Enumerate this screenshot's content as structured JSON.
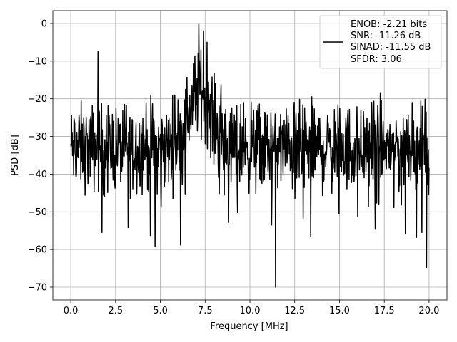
{
  "chart_data": {
    "type": "line",
    "title": "",
    "xlabel": "Frequency [MHz]",
    "ylabel": "PSD [dB]",
    "xlim": [
      -1,
      21
    ],
    "ylim": [
      -73.4,
      3.4
    ],
    "xticks": [
      0.0,
      2.5,
      5.0,
      7.5,
      10.0,
      12.5,
      15.0,
      17.5,
      20.0
    ],
    "xtick_labels": [
      "0.0",
      "2.5",
      "5.0",
      "7.5",
      "10.0",
      "12.5",
      "15.0",
      "17.5",
      "20.0"
    ],
    "yticks": [
      0,
      -10,
      -20,
      -30,
      -40,
      -50,
      -60,
      -70
    ],
    "ytick_labels": [
      "0",
      "−10",
      "−20",
      "−30",
      "−40",
      "−50",
      "−60",
      "−70"
    ],
    "grid": true,
    "legend_position": "top-right",
    "legend_lines": [
      "ENOB: -2.21 bits",
      "SNR: -11.26 dB",
      "SINAD: -11.55 dB",
      "SFDR: 3.06"
    ],
    "series": [
      {
        "color": "#000000",
        "note": "noisy power spectral density, ~1000 samples from 0 to 20 MHz",
        "x_range": [
          0.0,
          20.0
        ],
        "noise_floor_db": -33,
        "noise_spread_db": 8,
        "features": [
          {
            "x": 7.15,
            "y": 0.0,
            "kind": "main peak"
          },
          {
            "x": 7.4,
            "y": -2.0
          },
          {
            "x": 7.6,
            "y": -5.0
          },
          {
            "x": 1.52,
            "y": -7.5,
            "kind": "spur"
          },
          {
            "x": 11.43,
            "y": -70.0,
            "kind": "deep notch"
          },
          {
            "x": 19.85,
            "y": -64.8,
            "kind": "deep notch"
          },
          {
            "x": 4.7,
            "y": -59.3,
            "kind": "deep notch"
          },
          {
            "x": 4.45,
            "y": -56.3,
            "kind": "deep notch"
          },
          {
            "x": 1.75,
            "y": -55.5
          },
          {
            "x": 3.2,
            "y": -54.2
          },
          {
            "x": 19.6,
            "y": -55.5
          },
          {
            "x": 19.3,
            "y": -56.8
          },
          {
            "x": 13.4,
            "y": -56.6
          },
          {
            "x": 17.0,
            "y": -54.6
          },
          {
            "x": 3.0,
            "y": -21.5
          },
          {
            "x": 19.05,
            "y": -21.0
          },
          {
            "x": 9.65,
            "y": -21.0
          },
          {
            "x": 5.8,
            "y": -19.0
          },
          {
            "x": 6.4,
            "y": -17.5
          },
          {
            "x": 6.0,
            "y": -20.5
          }
        ]
      }
    ]
  }
}
